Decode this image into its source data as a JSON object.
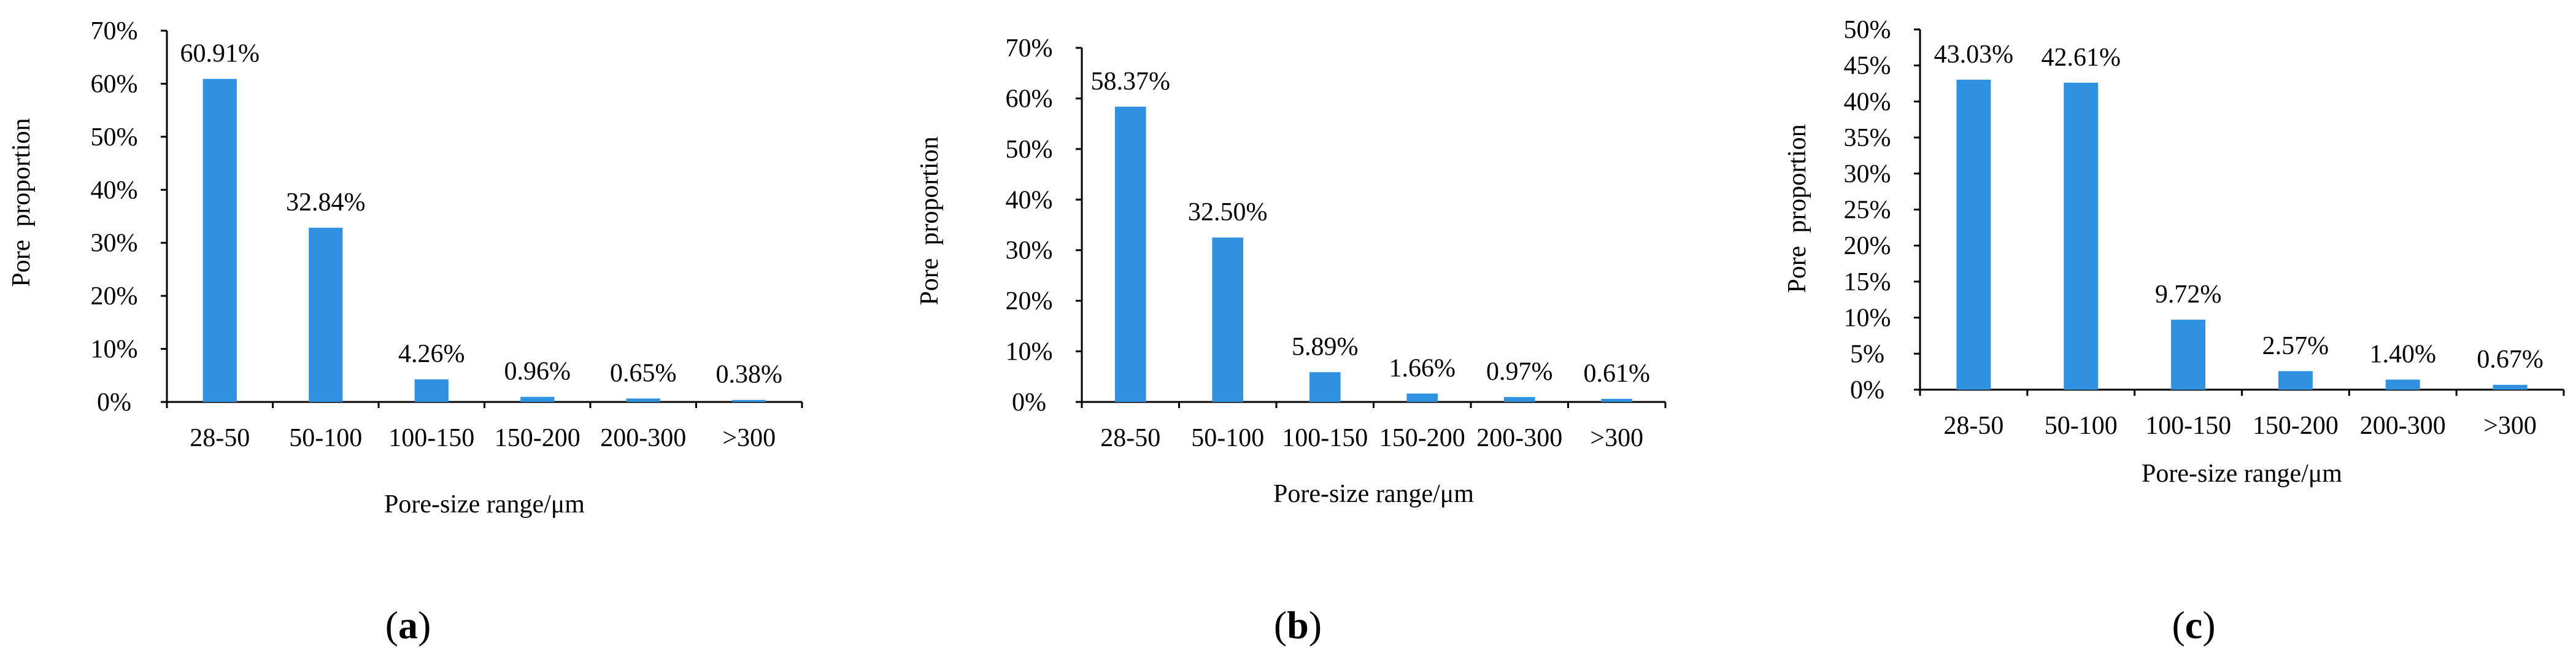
{
  "panels": [
    {
      "label_letter": "a",
      "chart_data": {
        "type": "bar",
        "categories": [
          "28-50",
          "50-100",
          "100-150",
          "150-200",
          "200-300",
          ">300"
        ],
        "values": [
          60.91,
          32.84,
          4.26,
          0.96,
          0.65,
          0.38
        ],
        "data_labels": [
          "60.91%",
          "32.84%",
          "4.26%",
          "0.96%",
          "0.65%",
          "0.38%"
        ],
        "ylabel": "Pore  proportion",
        "xlabel": "Pore-size range/μm",
        "ylim": [
          0,
          70
        ],
        "yticks": [
          0,
          10,
          20,
          30,
          40,
          50,
          60,
          70
        ],
        "ytick_labels": [
          "0%",
          "10%",
          "20%",
          "30%",
          "40%",
          "50%",
          "60%",
          "70%"
        ],
        "bar_color": "#3091E0",
        "grid": false
      }
    },
    {
      "label_letter": "b",
      "chart_data": {
        "type": "bar",
        "categories": [
          "28-50",
          "50-100",
          "100-150",
          "150-200",
          "200-300",
          ">300"
        ],
        "values": [
          58.37,
          32.5,
          5.89,
          1.66,
          0.97,
          0.61
        ],
        "data_labels": [
          "58.37%",
          "32.50%",
          "5.89%",
          "1.66%",
          "0.97%",
          "0.61%"
        ],
        "ylabel": "Pore  proportion",
        "xlabel": "Pore-size range/μm",
        "ylim": [
          0,
          70
        ],
        "yticks": [
          0,
          10,
          20,
          30,
          40,
          50,
          60,
          70
        ],
        "ytick_labels": [
          "0%",
          "10%",
          "20%",
          "30%",
          "40%",
          "50%",
          "60%",
          "70%"
        ],
        "bar_color": "#3091E0",
        "grid": false
      }
    },
    {
      "label_letter": "c",
      "chart_data": {
        "type": "bar",
        "categories": [
          "28-50",
          "50-100",
          "100-150",
          "150-200",
          "200-300",
          ">300"
        ],
        "values": [
          43.03,
          42.61,
          9.72,
          2.57,
          1.4,
          0.67
        ],
        "data_labels": [
          "43.03%",
          "42.61%",
          "9.72%",
          "2.57%",
          "1.40%",
          "0.67%"
        ],
        "ylabel": "Pore  proportion",
        "xlabel": "Pore-size range/μm",
        "ylim": [
          0,
          50
        ],
        "yticks": [
          0,
          5,
          10,
          15,
          20,
          25,
          30,
          35,
          40,
          45,
          50
        ],
        "ytick_labels": [
          "0%",
          "5%",
          "10%",
          "15%",
          "20%",
          "25%",
          "30%",
          "35%",
          "40%",
          "45%",
          "50%"
        ],
        "bar_color": "#3091E0",
        "grid": false
      }
    }
  ]
}
